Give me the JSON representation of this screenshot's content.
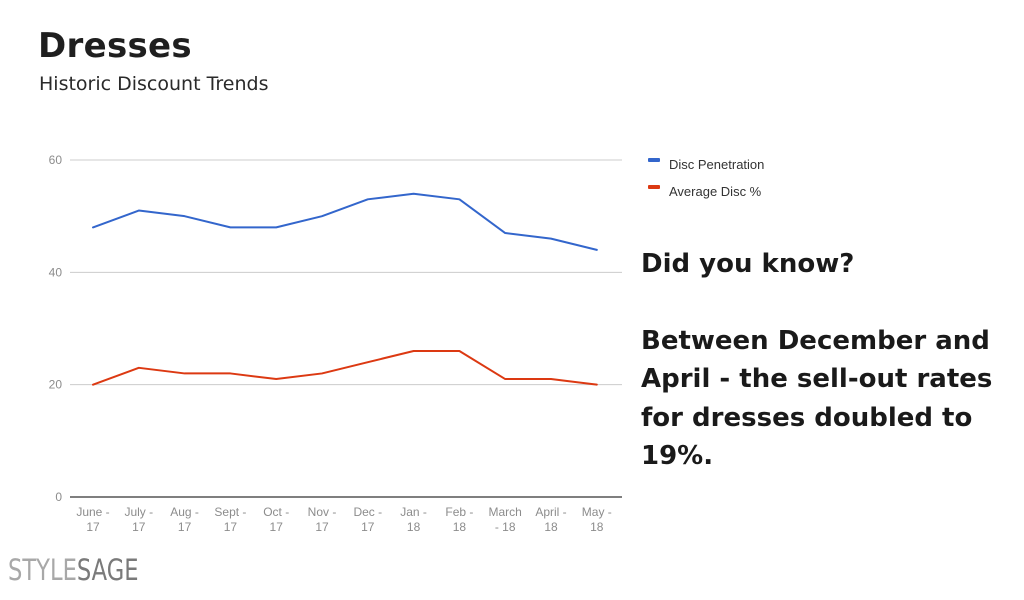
{
  "header": {
    "title": "Dresses",
    "subtitle": "Historic Discount Trends"
  },
  "callout": {
    "heading": "Did you know?",
    "body": "Between December and April - the sell-out rates for dresses doubled to 19%."
  },
  "logo": {
    "part1": "STYLE",
    "part2": "SAGE"
  },
  "chart_data": {
    "type": "line",
    "categories": [
      [
        "June -",
        "17"
      ],
      [
        "July -",
        "17"
      ],
      [
        "Aug -",
        "17"
      ],
      [
        "Sept -",
        "17"
      ],
      [
        "Oct -",
        "17"
      ],
      [
        "Nov -",
        "17"
      ],
      [
        "Dec -",
        "17"
      ],
      [
        "Jan -",
        "18"
      ],
      [
        "Feb -",
        "18"
      ],
      [
        "March",
        "- 18"
      ],
      [
        "April -",
        "18"
      ],
      [
        "May -",
        "18"
      ]
    ],
    "series": [
      {
        "name": "Disc Penetration",
        "color": "#3366cc",
        "values": [
          48,
          51,
          50,
          48,
          48,
          50,
          53,
          54,
          53,
          47,
          46,
          44
        ]
      },
      {
        "name": "Average Disc %",
        "color": "#dc3912",
        "values": [
          20,
          23,
          22,
          22,
          21,
          22,
          24,
          26,
          26,
          21,
          21,
          20
        ]
      }
    ],
    "yticks": [
      0,
      20,
      40,
      60
    ],
    "ylim": [
      0,
      60
    ],
    "grid": true,
    "legend_position": "right"
  }
}
